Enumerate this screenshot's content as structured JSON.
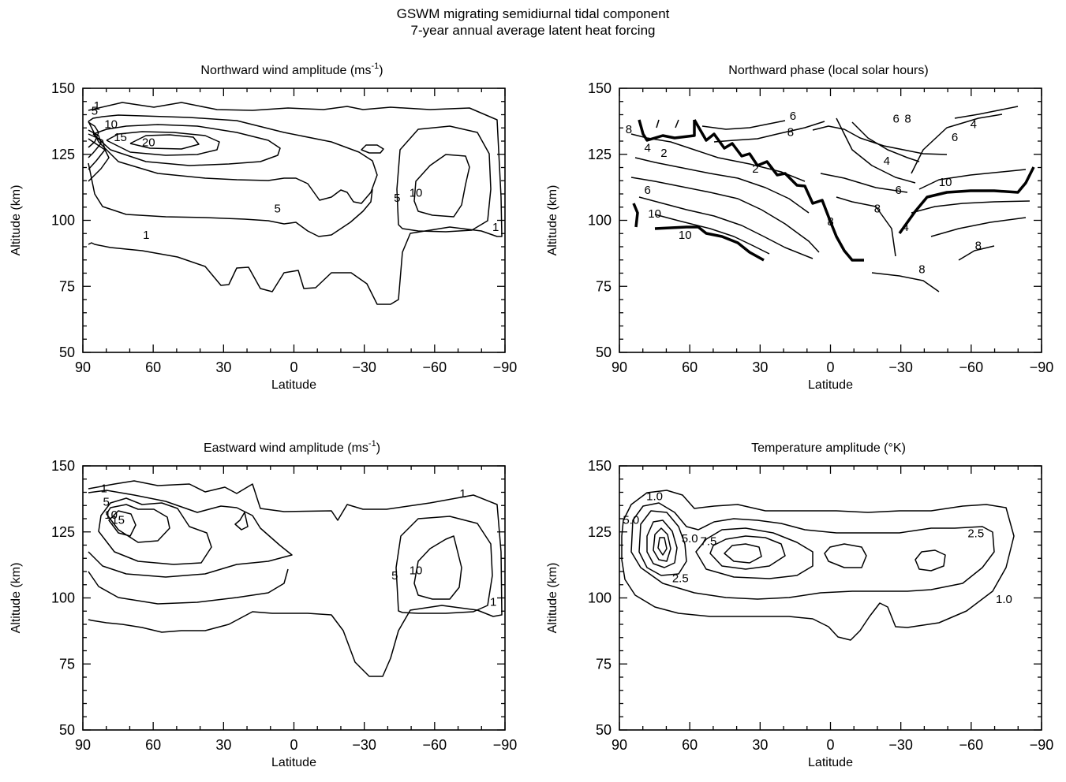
{
  "figure": {
    "title_line1": "GSWM migrating semidiurnal tidal component",
    "title_line2": "7-year annual average latent heat forcing"
  },
  "chart_data": [
    {
      "type": "contour",
      "title": "Northward wind amplitude (ms",
      "title_unit_exponent": "-1",
      "title_suffix": ")",
      "xlabel": "Latitude",
      "ylabel": "Altitude (km)",
      "xlim": [
        90,
        -90
      ],
      "ylim": [
        50,
        150
      ],
      "xticks": [
        "90",
        "60",
        "30",
        "0",
        "−30",
        "−60",
        "−90"
      ],
      "yticks": [
        "50",
        "75",
        "100",
        "125",
        "150"
      ],
      "contour_levels": [
        "1",
        "5",
        "10",
        "15",
        "20"
      ],
      "annotations": [
        {
          "text": "1",
          "lat": 63,
          "alt": 93
        },
        {
          "text": "5",
          "lat": 7,
          "alt": 103
        },
        {
          "text": "5",
          "lat": -44,
          "alt": 107
        },
        {
          "text": "10",
          "lat": -52,
          "alt": 109
        },
        {
          "text": "10",
          "lat": 78,
          "alt": 135
        },
        {
          "text": "15",
          "lat": 74,
          "alt": 130
        },
        {
          "text": "20",
          "lat": 62,
          "alt": 128
        },
        {
          "text": "5",
          "lat": 85,
          "alt": 140
        },
        {
          "text": "1",
          "lat": 84,
          "alt": 142
        },
        {
          "text": "1",
          "lat": -86,
          "alt": 96
        }
      ]
    },
    {
      "type": "contour",
      "title": "Northward phase (local solar hours)",
      "xlabel": "Latitude",
      "ylabel": "Altitude (km)",
      "xlim": [
        90,
        -90
      ],
      "ylim": [
        50,
        150
      ],
      "xticks": [
        "90",
        "60",
        "30",
        "0",
        "−30",
        "−60",
        "−90"
      ],
      "yticks": [
        "50",
        "75",
        "100",
        "125",
        "150"
      ],
      "contour_levels": [
        "2",
        "4",
        "6",
        "8",
        "10"
      ],
      "annotations": [
        {
          "text": "6",
          "lat": 16,
          "alt": 138
        },
        {
          "text": "8",
          "lat": 17,
          "alt": 132
        },
        {
          "text": "2",
          "lat": 32,
          "alt": 118
        },
        {
          "text": "4",
          "lat": 78,
          "alt": 126
        },
        {
          "text": "2",
          "lat": 71,
          "alt": 124
        },
        {
          "text": "6",
          "lat": 78,
          "alt": 110
        },
        {
          "text": "10",
          "lat": 75,
          "alt": 101
        },
        {
          "text": "10",
          "lat": 62,
          "alt": 93
        },
        {
          "text": "8",
          "lat": -33,
          "alt": 137
        },
        {
          "text": "6",
          "lat": -28,
          "alt": 137
        },
        {
          "text": "4",
          "lat": -24,
          "alt": 121
        },
        {
          "text": "6",
          "lat": -29,
          "alt": 110
        },
        {
          "text": "8",
          "lat": -20,
          "alt": 103
        },
        {
          "text": "4",
          "lat": -61,
          "alt": 135
        },
        {
          "text": "6",
          "lat": -53,
          "alt": 130
        },
        {
          "text": "10",
          "lat": -49,
          "alt": 113
        },
        {
          "text": "8",
          "lat": -63,
          "alt": 89
        },
        {
          "text": "8",
          "lat": -39,
          "alt": 80
        },
        {
          "text": "4",
          "lat": -32,
          "alt": 96
        },
        {
          "text": "8",
          "lat": 0,
          "alt": 98
        },
        {
          "text": "8",
          "lat": 86,
          "alt": 133
        }
      ]
    },
    {
      "type": "contour",
      "title": "Eastward wind amplitude (ms",
      "title_unit_exponent": "-1",
      "title_suffix": ")",
      "xlabel": "Latitude",
      "ylabel": "Altitude (km)",
      "xlim": [
        90,
        -90
      ],
      "ylim": [
        50,
        150
      ],
      "xticks": [
        "90",
        "60",
        "30",
        "0",
        "−30",
        "−60",
        "−90"
      ],
      "yticks": [
        "50",
        "75",
        "100",
        "125",
        "150"
      ],
      "contour_levels": [
        "1",
        "5",
        "10",
        "15"
      ],
      "annotations": [
        {
          "text": "1",
          "lat": -72,
          "alt": 138
        },
        {
          "text": "5",
          "lat": -43,
          "alt": 107
        },
        {
          "text": "10",
          "lat": -52,
          "alt": 109
        },
        {
          "text": "1",
          "lat": -85,
          "alt": 97
        },
        {
          "text": "1",
          "lat": 81,
          "alt": 140
        },
        {
          "text": "5",
          "lat": 80,
          "alt": 135
        },
        {
          "text": "10",
          "lat": 78,
          "alt": 130
        },
        {
          "text": "15",
          "lat": 75,
          "alt": 128
        }
      ]
    },
    {
      "type": "contour",
      "title": "Temperature amplitude (°K)",
      "xlabel": "Latitude",
      "ylabel": "Altitude (km)",
      "xlim": [
        90,
        -90
      ],
      "ylim": [
        50,
        150
      ],
      "xticks": [
        "90",
        "60",
        "30",
        "0",
        "−30",
        "−60",
        "−90"
      ],
      "yticks": [
        "50",
        "75",
        "100",
        "125",
        "150"
      ],
      "contour_levels": [
        "1.0",
        "2.5",
        "5.0",
        "7.5"
      ],
      "annotations": [
        {
          "text": "1.0",
          "lat": 75,
          "alt": 137
        },
        {
          "text": "5.0",
          "lat": 85,
          "alt": 128
        },
        {
          "text": "5.0",
          "lat": 60,
          "alt": 121
        },
        {
          "text": "7.5",
          "lat": 52,
          "alt": 120
        },
        {
          "text": "2.5",
          "lat": -62,
          "alt": 123
        },
        {
          "text": "2.5",
          "lat": 64,
          "alt": 106
        },
        {
          "text": "1.0",
          "lat": -74,
          "alt": 98
        }
      ]
    }
  ]
}
